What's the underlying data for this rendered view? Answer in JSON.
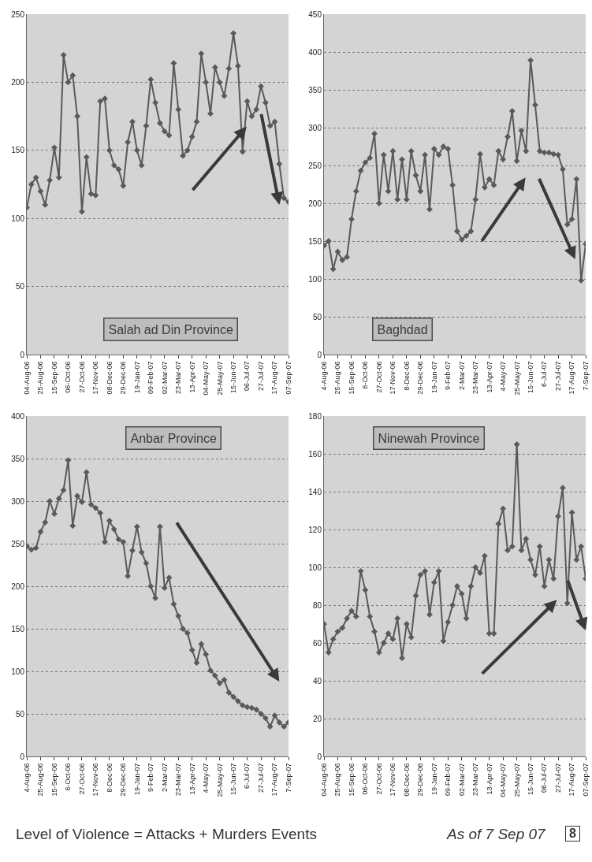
{
  "chart_data": [
    {
      "type": "line",
      "title": "Salah ad Din Province",
      "color": "#5a5a5a",
      "marker": "diamond",
      "grid": "y",
      "x": [
        "2006-08-04",
        "2006-08-11",
        "2006-08-18",
        "2006-08-25",
        "2006-09-01",
        "2006-09-08",
        "2006-09-15",
        "2006-09-22",
        "2006-09-29",
        "2006-10-06",
        "2006-10-13",
        "2006-10-20",
        "2006-10-27",
        "2006-11-03",
        "2006-11-10",
        "2006-11-17",
        "2006-11-24",
        "2006-12-01",
        "2006-12-08",
        "2006-12-15",
        "2006-12-22",
        "2006-12-29",
        "2007-01-05",
        "2007-01-12",
        "2007-01-19",
        "2007-01-26",
        "2007-02-02",
        "2007-02-09",
        "2007-02-16",
        "2007-02-23",
        "2007-03-02",
        "2007-03-09",
        "2007-03-16",
        "2007-03-23",
        "2007-03-30",
        "2007-04-06",
        "2007-04-13",
        "2007-04-20",
        "2007-04-27",
        "2007-05-04",
        "2007-05-11",
        "2007-05-18",
        "2007-05-25",
        "2007-06-01",
        "2007-06-08",
        "2007-06-15",
        "2007-06-22",
        "2007-06-29",
        "2007-07-06",
        "2007-07-13",
        "2007-07-20",
        "2007-07-27",
        "2007-08-03",
        "2007-08-10",
        "2007-08-17",
        "2007-08-24",
        "2007-08-31",
        "2007-09-07"
      ],
      "values": [
        108,
        125,
        130,
        120,
        110,
        128,
        152,
        130,
        220,
        200,
        205,
        175,
        105,
        145,
        118,
        117,
        186,
        188,
        150,
        139,
        136,
        124,
        156,
        171,
        150,
        139,
        168,
        202,
        185,
        170,
        164,
        161,
        214,
        180,
        146,
        150,
        160,
        171,
        221,
        200,
        177,
        211,
        200,
        190,
        210,
        236,
        212,
        149,
        186,
        175,
        180,
        197,
        185,
        168,
        171,
        140,
        115,
        112
      ],
      "xlim": [
        "2006-08-04",
        "2007-09-07"
      ],
      "xticks": [
        {
          "value": "2006-08-04",
          "label": "04-Aug-06"
        },
        {
          "value": "2006-08-25",
          "label": "25-Aug-06"
        },
        {
          "value": "2006-09-15",
          "label": "15-Sep-06"
        },
        {
          "value": "2006-10-06",
          "label": "06-Oct-06"
        },
        {
          "value": "2006-10-27",
          "label": "27-Oct-06"
        },
        {
          "value": "2006-11-17",
          "label": "17-Nov-06"
        },
        {
          "value": "2006-12-08",
          "label": "08-Dec-06"
        },
        {
          "value": "2006-12-29",
          "label": "29-Dec-06"
        },
        {
          "value": "2007-01-19",
          "label": "19-Jan-07"
        },
        {
          "value": "2007-02-09",
          "label": "09-Feb-07"
        },
        {
          "value": "2007-03-02",
          "label": "02-Mar-07"
        },
        {
          "value": "2007-03-23",
          "label": "23-Mar-07"
        },
        {
          "value": "2007-04-13",
          "label": "13-Apr-07"
        },
        {
          "value": "2007-05-04",
          "label": "04-May-07"
        },
        {
          "value": "2007-05-25",
          "label": "25-May-07"
        },
        {
          "value": "2007-06-15",
          "label": "15-Jun-07"
        },
        {
          "value": "2007-07-06",
          "label": "06-Jul-07"
        },
        {
          "value": "2007-07-27",
          "label": "27-Jul-07"
        },
        {
          "value": "2007-08-17",
          "label": "17-Aug-07"
        },
        {
          "value": "2007-09-07",
          "label": "07-Sep-07"
        }
      ],
      "ylim": [
        0,
        250
      ],
      "yticks": [
        0,
        50,
        100,
        150,
        200,
        250
      ]
    },
    {
      "type": "line",
      "title": "Baghdad",
      "color": "#5a5a5a",
      "marker": "diamond",
      "grid": "y",
      "x": [
        "2006-08-04",
        "2006-08-11",
        "2006-08-18",
        "2006-08-25",
        "2006-09-01",
        "2006-09-08",
        "2006-09-15",
        "2006-09-22",
        "2006-09-29",
        "2006-10-06",
        "2006-10-13",
        "2006-10-20",
        "2006-10-27",
        "2006-11-03",
        "2006-11-10",
        "2006-11-17",
        "2006-11-24",
        "2006-12-01",
        "2006-12-08",
        "2006-12-15",
        "2006-12-22",
        "2006-12-29",
        "2007-01-05",
        "2007-01-12",
        "2007-01-19",
        "2007-01-26",
        "2007-02-02",
        "2007-02-09",
        "2007-02-16",
        "2007-02-23",
        "2007-03-02",
        "2007-03-09",
        "2007-03-16",
        "2007-03-23",
        "2007-03-30",
        "2007-04-06",
        "2007-04-13",
        "2007-04-20",
        "2007-04-27",
        "2007-05-04",
        "2007-05-11",
        "2007-05-18",
        "2007-05-25",
        "2007-06-01",
        "2007-06-08",
        "2007-06-15",
        "2007-06-22",
        "2007-06-29",
        "2007-07-06",
        "2007-07-13",
        "2007-07-20",
        "2007-07-27",
        "2007-08-03",
        "2007-08-10",
        "2007-08-17",
        "2007-08-24",
        "2007-08-31",
        "2007-09-07"
      ],
      "values": [
        144,
        150,
        113,
        136,
        125,
        129,
        179,
        216,
        243,
        254,
        260,
        292,
        200,
        264,
        216,
        269,
        205,
        258,
        205,
        269,
        237,
        216,
        264,
        192,
        272,
        264,
        275,
        272,
        224,
        163,
        152,
        157,
        163,
        205,
        265,
        221,
        232,
        224,
        269,
        258,
        288,
        322,
        256,
        296,
        269,
        389,
        330,
        269,
        267,
        267,
        265,
        264,
        245,
        172,
        179,
        232,
        98,
        146
      ],
      "xlim": [
        "2006-08-04",
        "2007-09-07"
      ],
      "xticks": [
        {
          "value": "2006-08-04",
          "label": "4-Aug-06"
        },
        {
          "value": "2006-08-25",
          "label": "25-Aug-06"
        },
        {
          "value": "2006-09-15",
          "label": "15-Sep-06"
        },
        {
          "value": "2006-10-06",
          "label": "6-Oct-06"
        },
        {
          "value": "2006-10-27",
          "label": "27-Oct-06"
        },
        {
          "value": "2006-11-17",
          "label": "17-Nov-06"
        },
        {
          "value": "2006-12-08",
          "label": "8-Dec-06"
        },
        {
          "value": "2006-12-29",
          "label": "29-Dec-06"
        },
        {
          "value": "2007-01-19",
          "label": "19-Jan-07"
        },
        {
          "value": "2007-02-09",
          "label": "9-Feb-07"
        },
        {
          "value": "2007-03-02",
          "label": "2-Mar-07"
        },
        {
          "value": "2007-03-23",
          "label": "23-Mar-07"
        },
        {
          "value": "2007-04-13",
          "label": "13-Apr-07"
        },
        {
          "value": "2007-05-04",
          "label": "4-May-07"
        },
        {
          "value": "2007-05-25",
          "label": "25-May-07"
        },
        {
          "value": "2007-06-15",
          "label": "15-Jun-07"
        },
        {
          "value": "2007-07-06",
          "label": "6-Jul-07"
        },
        {
          "value": "2007-07-27",
          "label": "27-Jul-07"
        },
        {
          "value": "2007-08-17",
          "label": "17-Aug-07"
        },
        {
          "value": "2007-09-07",
          "label": "7-Sep-07"
        }
      ],
      "ylim": [
        0,
        450
      ],
      "yticks": [
        0,
        50,
        100,
        150,
        200,
        250,
        300,
        350,
        400,
        450
      ]
    },
    {
      "type": "line",
      "title": "Anbar Province",
      "color": "#5a5a5a",
      "marker": "diamond",
      "grid": "y",
      "annotations": [
        "Level of Violence = Attacks + Murders Events"
      ],
      "x": [
        "2006-08-04",
        "2006-08-11",
        "2006-08-18",
        "2006-08-25",
        "2006-09-01",
        "2006-09-08",
        "2006-09-15",
        "2006-09-22",
        "2006-09-29",
        "2006-10-06",
        "2006-10-13",
        "2006-10-20",
        "2006-10-27",
        "2006-11-03",
        "2006-11-10",
        "2006-11-17",
        "2006-11-24",
        "2006-12-01",
        "2006-12-08",
        "2006-12-15",
        "2006-12-22",
        "2006-12-29",
        "2007-01-05",
        "2007-01-12",
        "2007-01-19",
        "2007-01-26",
        "2007-02-02",
        "2007-02-09",
        "2007-02-16",
        "2007-02-23",
        "2007-03-02",
        "2007-03-09",
        "2007-03-16",
        "2007-03-23",
        "2007-03-30",
        "2007-04-06",
        "2007-04-13",
        "2007-04-20",
        "2007-04-27",
        "2007-05-04",
        "2007-05-11",
        "2007-05-18",
        "2007-05-25",
        "2007-06-01",
        "2007-06-08",
        "2007-06-15",
        "2007-06-22",
        "2007-06-29",
        "2007-07-06",
        "2007-07-13",
        "2007-07-20",
        "2007-07-27",
        "2007-08-03",
        "2007-08-10",
        "2007-08-17",
        "2007-08-24",
        "2007-08-31",
        "2007-09-07"
      ],
      "values": [
        247,
        243,
        245,
        264,
        275,
        300,
        285,
        303,
        313,
        348,
        271,
        306,
        299,
        334,
        296,
        292,
        286,
        252,
        277,
        267,
        255,
        252,
        212,
        242,
        270,
        240,
        227,
        200,
        186,
        270,
        198,
        210,
        179,
        165,
        150,
        145,
        125,
        110,
        132,
        120,
        101,
        95,
        86,
        90,
        75,
        70,
        65,
        60,
        58,
        57,
        55,
        50,
        45,
        35,
        48,
        40,
        35,
        40
      ],
      "xlim": [
        "2006-08-04",
        "2007-09-07"
      ],
      "xticks": [
        {
          "value": "2006-08-04",
          "label": "4-Aug-06"
        },
        {
          "value": "2006-08-25",
          "label": "25-Aug-06"
        },
        {
          "value": "2006-09-15",
          "label": "15-Sep-06"
        },
        {
          "value": "2006-10-06",
          "label": "6-Oct-06"
        },
        {
          "value": "2006-10-27",
          "label": "27-Oct-06"
        },
        {
          "value": "2006-11-17",
          "label": "17-Nov-06"
        },
        {
          "value": "2006-12-08",
          "label": "8-Dec-06"
        },
        {
          "value": "2006-12-29",
          "label": "29-Dec-06"
        },
        {
          "value": "2007-01-19",
          "label": "19-Jan-07"
        },
        {
          "value": "2007-02-09",
          "label": "9-Feb-07"
        },
        {
          "value": "2007-03-02",
          "label": "2-Mar-07"
        },
        {
          "value": "2007-03-23",
          "label": "23-Mar-07"
        },
        {
          "value": "2007-04-13",
          "label": "13-Apr-07"
        },
        {
          "value": "2007-05-04",
          "label": "4-May-07"
        },
        {
          "value": "2007-05-25",
          "label": "25-May-07"
        },
        {
          "value": "2007-06-15",
          "label": "15-Jun-07"
        },
        {
          "value": "2007-07-06",
          "label": "6-Jul-07"
        },
        {
          "value": "2007-07-27",
          "label": "27-Jul-07"
        },
        {
          "value": "2007-08-17",
          "label": "17-Aug-07"
        },
        {
          "value": "2007-09-07",
          "label": "7-Sep-07"
        }
      ],
      "ylim": [
        0,
        400
      ],
      "yticks": [
        0,
        50,
        100,
        150,
        200,
        250,
        300,
        350,
        400
      ]
    },
    {
      "type": "line",
      "title": "Ninewah Province",
      "color": "#5a5a5a",
      "marker": "diamond",
      "grid": "y",
      "annotations": [
        "As of 7 Sep 07",
        "8"
      ],
      "x": [
        "2006-08-04",
        "2006-08-11",
        "2006-08-18",
        "2006-08-25",
        "2006-09-01",
        "2006-09-08",
        "2006-09-15",
        "2006-09-22",
        "2006-09-29",
        "2006-10-06",
        "2006-10-13",
        "2006-10-20",
        "2006-10-27",
        "2006-11-03",
        "2006-11-10",
        "2006-11-17",
        "2006-11-24",
        "2006-12-01",
        "2006-12-08",
        "2006-12-15",
        "2006-12-22",
        "2006-12-29",
        "2007-01-05",
        "2007-01-12",
        "2007-01-19",
        "2007-01-26",
        "2007-02-02",
        "2007-02-09",
        "2007-02-16",
        "2007-02-23",
        "2007-03-02",
        "2007-03-09",
        "2007-03-16",
        "2007-03-23",
        "2007-03-30",
        "2007-04-06",
        "2007-04-13",
        "2007-04-20",
        "2007-04-27",
        "2007-05-04",
        "2007-05-11",
        "2007-05-18",
        "2007-05-25",
        "2007-06-01",
        "2007-06-08",
        "2007-06-15",
        "2007-06-22",
        "2007-06-29",
        "2007-07-06",
        "2007-07-13",
        "2007-07-20",
        "2007-07-27",
        "2007-08-03",
        "2007-08-10",
        "2007-08-17",
        "2007-08-24",
        "2007-08-31",
        "2007-09-07"
      ],
      "values": [
        70,
        55,
        62,
        66,
        68,
        73,
        77,
        74,
        98,
        88,
        74,
        66,
        55,
        60,
        65,
        62,
        73,
        52,
        70,
        63,
        85,
        96,
        98,
        75,
        92,
        98,
        61,
        71,
        80,
        90,
        86,
        73,
        90,
        100,
        97,
        106,
        65,
        65,
        123,
        131,
        109,
        111,
        165,
        109,
        115,
        104,
        96,
        111,
        90,
        104,
        94,
        127,
        142,
        81,
        129,
        104,
        111,
        94
      ],
      "xlim": [
        "2006-08-04",
        "2007-09-07"
      ],
      "xticks": [
        {
          "value": "2006-08-04",
          "label": "04-Aug-06"
        },
        {
          "value": "2006-08-25",
          "label": "25-Aug-06"
        },
        {
          "value": "2006-09-15",
          "label": "15-Sep-06"
        },
        {
          "value": "2006-10-06",
          "label": "06-Oct-06"
        },
        {
          "value": "2006-10-27",
          "label": "27-Oct-06"
        },
        {
          "value": "2006-11-17",
          "label": "17-Nov-06"
        },
        {
          "value": "2006-12-08",
          "label": "08-Dec-06"
        },
        {
          "value": "2006-12-29",
          "label": "29-Dec-06"
        },
        {
          "value": "2007-01-19",
          "label": "19-Jan-07"
        },
        {
          "value": "2007-02-09",
          "label": "09-Feb-07"
        },
        {
          "value": "2007-03-02",
          "label": "02-Mar-07"
        },
        {
          "value": "2007-03-23",
          "label": "23-Mar-07"
        },
        {
          "value": "2007-04-13",
          "label": "13-Apr-07"
        },
        {
          "value": "2007-05-04",
          "label": "04-May-07"
        },
        {
          "value": "2007-05-25",
          "label": "25-May-07"
        },
        {
          "value": "2007-06-15",
          "label": "15-Jun-07"
        },
        {
          "value": "2007-07-06",
          "label": "06-Jul-07"
        },
        {
          "value": "2007-07-27",
          "label": "27-Jul-07"
        },
        {
          "value": "2007-08-17",
          "label": "17-Aug-07"
        },
        {
          "value": "2007-09-07",
          "label": "07-Sep-07"
        }
      ],
      "ylim": [
        0,
        180
      ],
      "yticks": [
        0,
        20,
        40,
        60,
        80,
        100,
        120,
        140,
        160,
        180
      ]
    }
  ]
}
